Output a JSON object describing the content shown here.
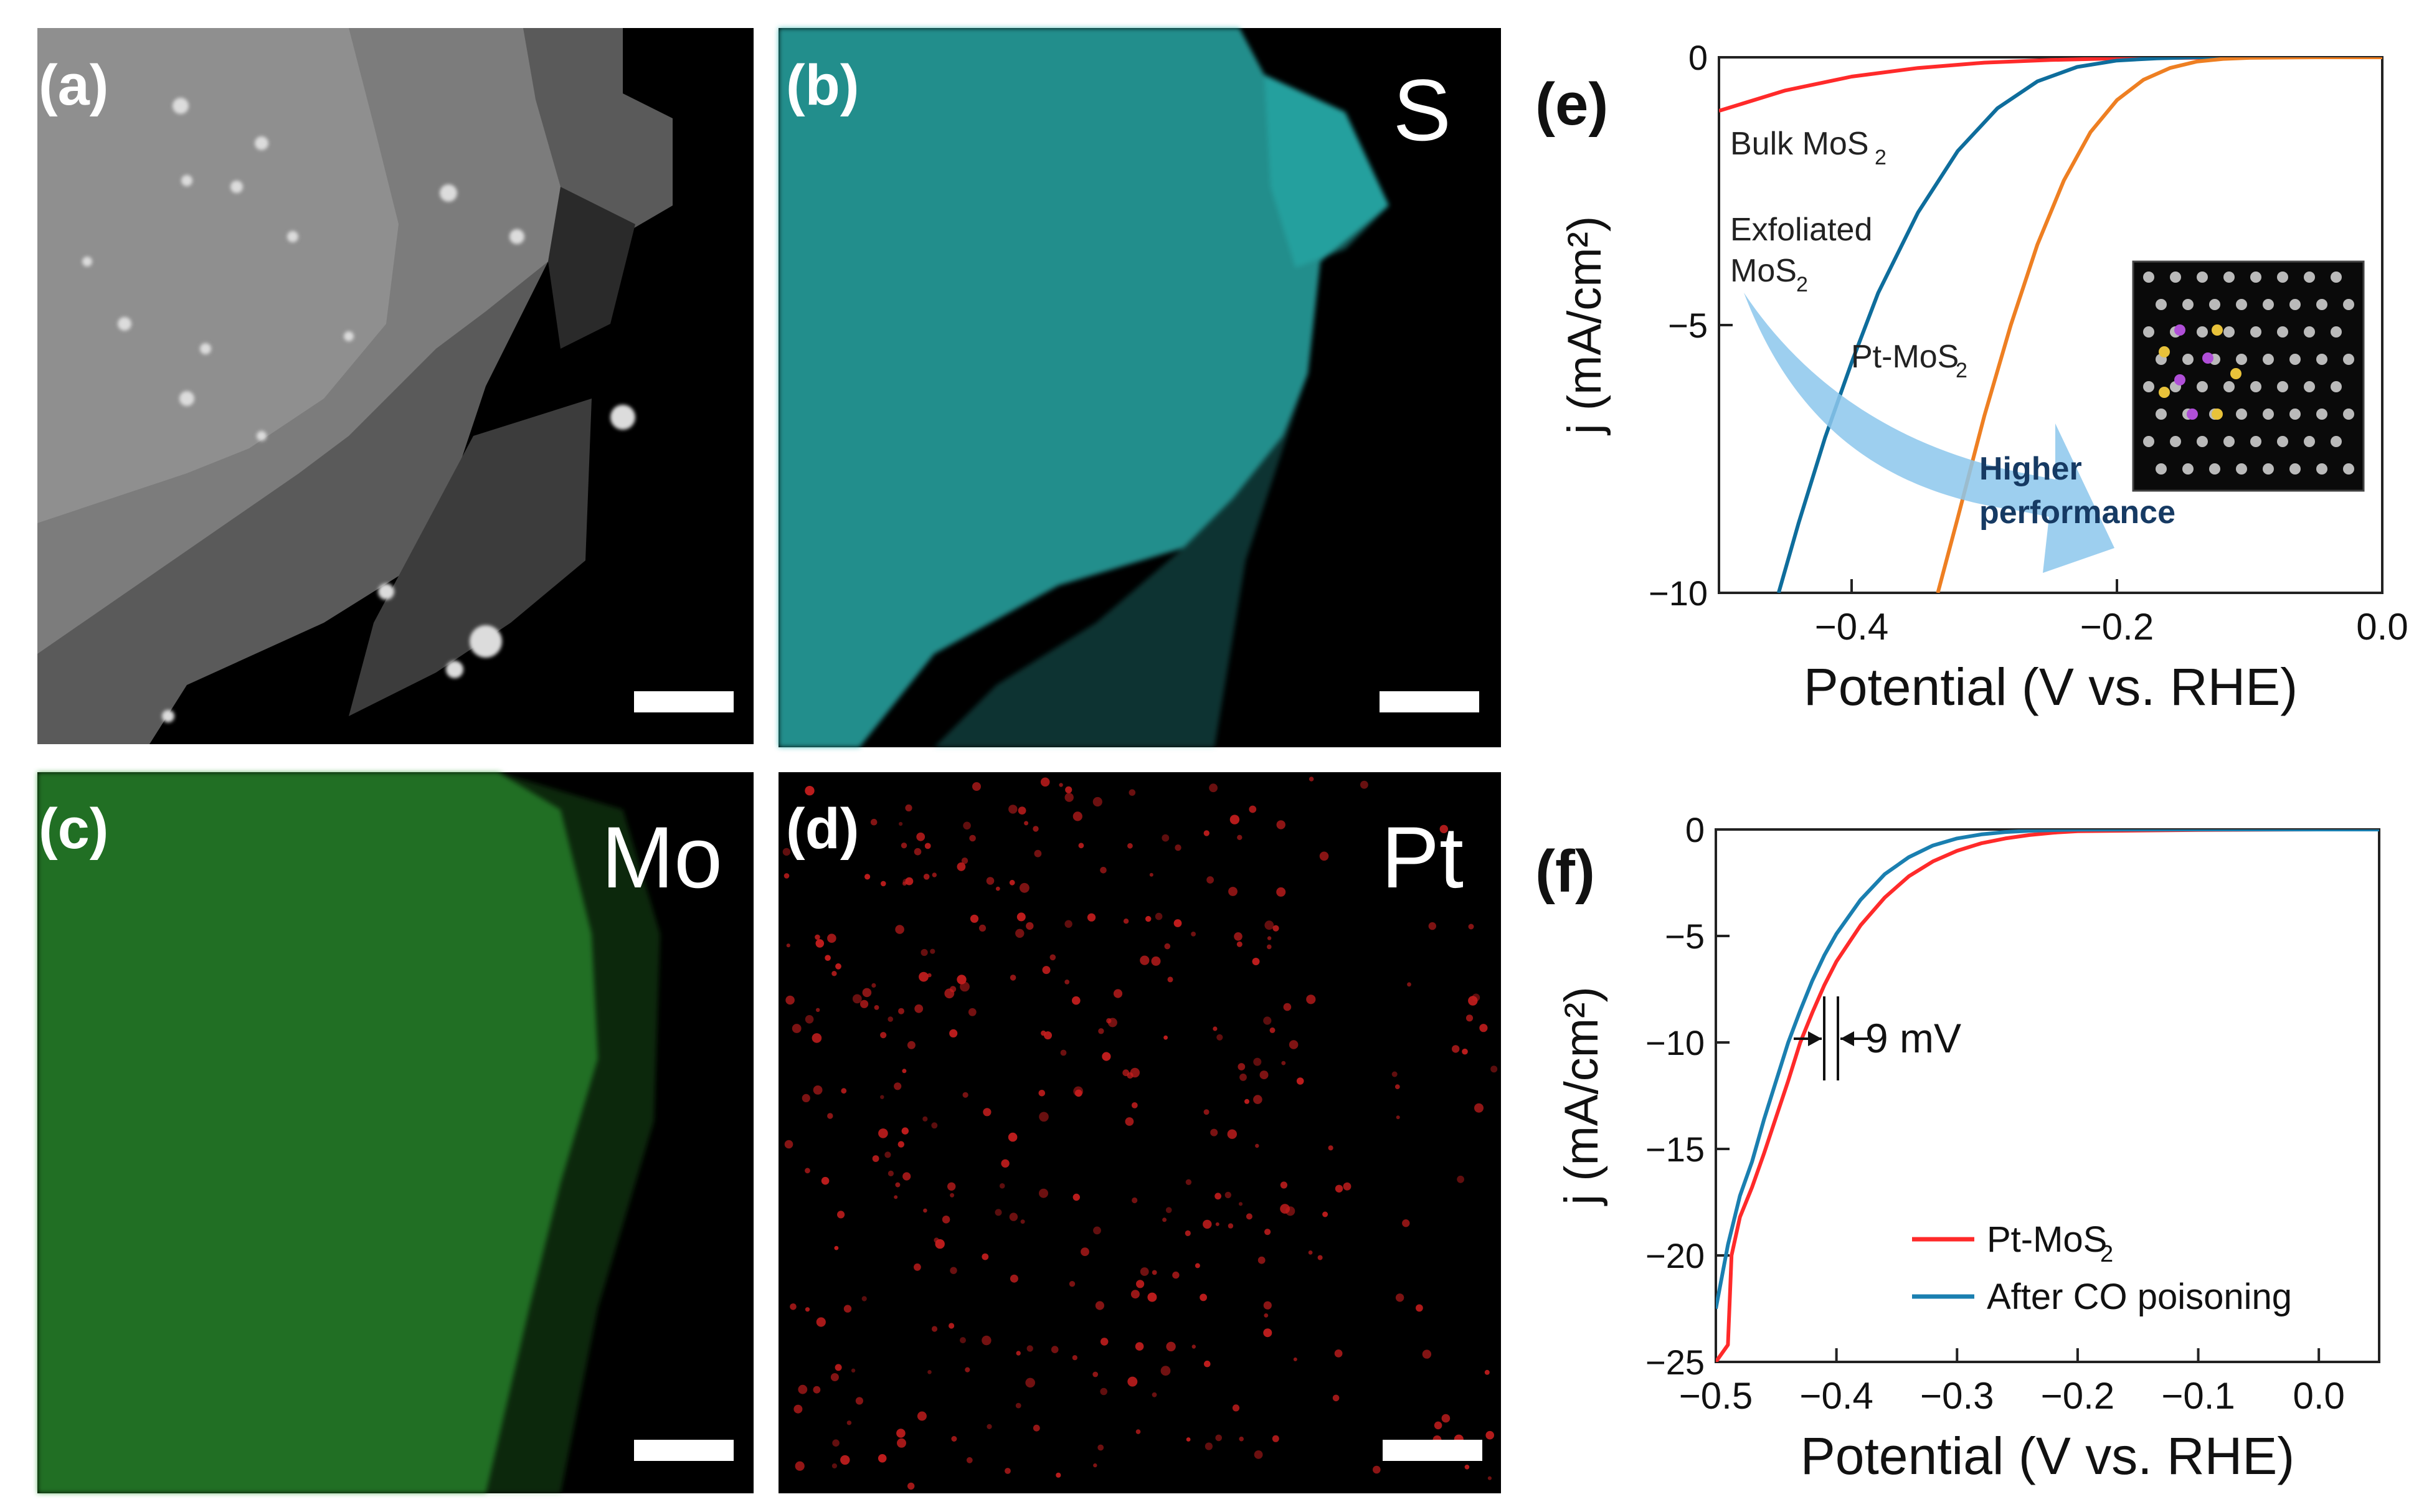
{
  "colors": {
    "panel_bg": "#000000",
    "sulfur": "#2bb6b4",
    "molybdenum": "#2f9e32",
    "platinum": "#c81e1e",
    "bulk": "#ff2a2a",
    "exfoliated": "#0e6d9c",
    "ptmos2": "#ee7f22",
    "after_co": "#1a7fb0",
    "arrow": "#8cc7ec"
  },
  "panels": {
    "a": {
      "label": "(a)"
    },
    "b": {
      "label": "(b)",
      "element": "S"
    },
    "c": {
      "label": "(c)",
      "element": "Mo"
    },
    "d": {
      "label": "(d)",
      "element": "Pt"
    },
    "e": {
      "label": "(e)",
      "annotation_bulk": "Bulk MoS",
      "annotation_exfoliated_1": "Exfoliated",
      "annotation_exfoliated_2": "MoS",
      "annotation_pt": "Pt-MoS",
      "annotation_sub": "2",
      "arrow_text_1": "Higher",
      "arrow_text_2": "performance"
    },
    "f": {
      "label": "(f)",
      "annotation": "9 mV"
    }
  },
  "chart_data": [
    {
      "panel": "e",
      "type": "line",
      "xlabel": "Potential (V vs. RHE)",
      "ylabel": "j (mA/cm²)",
      "xlim": [
        -0.5,
        0.0
      ],
      "ylim": [
        -10,
        0
      ],
      "xticks": [
        -0.4,
        -0.2,
        0.0
      ],
      "xtick_labels": [
        "−0.4",
        "−0.2",
        "0.0"
      ],
      "yticks": [
        0,
        -5,
        -10
      ],
      "ytick_labels": [
        "0",
        "−5",
        "−10"
      ],
      "series": [
        {
          "name": "Bulk MoS2",
          "x": [
            -0.5,
            -0.45,
            -0.4,
            -0.35,
            -0.3,
            -0.25,
            -0.2,
            -0.15,
            -0.1,
            -0.05,
            0.0
          ],
          "y": [
            -1.0,
            -0.62,
            -0.36,
            -0.2,
            -0.1,
            -0.05,
            -0.02,
            -0.01,
            0.0,
            0.0,
            0.0
          ]
        },
        {
          "name": "Exfoliated MoS2",
          "x": [
            -0.455,
            -0.44,
            -0.42,
            -0.4,
            -0.38,
            -0.35,
            -0.32,
            -0.29,
            -0.26,
            -0.23,
            -0.2,
            -0.17,
            -0.14,
            -0.1,
            0.0
          ],
          "y": [
            -10.0,
            -8.7,
            -7.1,
            -5.7,
            -4.4,
            -2.9,
            -1.75,
            -0.95,
            -0.45,
            -0.18,
            -0.06,
            -0.02,
            0.0,
            0.0,
            0.0
          ]
        },
        {
          "name": "Pt-MoS2",
          "x": [
            -0.335,
            -0.32,
            -0.3,
            -0.28,
            -0.26,
            -0.24,
            -0.22,
            -0.2,
            -0.18,
            -0.16,
            -0.14,
            -0.12,
            -0.1,
            -0.05,
            0.0
          ],
          "y": [
            -10.0,
            -8.6,
            -6.7,
            -5.0,
            -3.5,
            -2.3,
            -1.4,
            -0.8,
            -0.42,
            -0.2,
            -0.08,
            -0.03,
            -0.01,
            0.0,
            0.0
          ]
        }
      ]
    },
    {
      "panel": "f",
      "type": "line",
      "xlabel": "Potential (V vs. RHE)",
      "ylabel": "j (mA/cm²)",
      "xlim": [
        -0.5,
        0.05
      ],
      "ylim": [
        -25,
        0
      ],
      "xticks": [
        -0.5,
        -0.4,
        -0.3,
        -0.2,
        -0.1,
        0.0
      ],
      "xtick_labels": [
        "−0.5",
        "−0.4",
        "−0.3",
        "−0.2",
        "−0.1",
        "0.0"
      ],
      "yticks": [
        0,
        -5,
        -10,
        -15,
        -20,
        -25
      ],
      "ytick_labels": [
        "0",
        "−5",
        "−10",
        "−15",
        "−20",
        "−25"
      ],
      "legend": "bottom-right",
      "series": [
        {
          "name": "Pt-MoS2",
          "x": [
            -0.5,
            -0.49,
            -0.487,
            -0.48,
            -0.47,
            -0.46,
            -0.45,
            -0.44,
            -0.43,
            -0.42,
            -0.41,
            -0.4,
            -0.38,
            -0.36,
            -0.34,
            -0.32,
            -0.3,
            -0.28,
            -0.26,
            -0.24,
            -0.22,
            -0.2,
            -0.1,
            0.0,
            0.05
          ],
          "y": [
            -25.0,
            -24.2,
            -20.0,
            -18.2,
            -16.8,
            -15.2,
            -13.5,
            -11.8,
            -10.0,
            -8.6,
            -7.3,
            -6.2,
            -4.5,
            -3.2,
            -2.2,
            -1.5,
            -1.0,
            -0.65,
            -0.42,
            -0.26,
            -0.15,
            -0.08,
            -0.02,
            0.0,
            0.0
          ]
        },
        {
          "name": "After CO poisoning",
          "x": [
            -0.5,
            -0.49,
            -0.48,
            -0.47,
            -0.46,
            -0.45,
            -0.44,
            -0.43,
            -0.42,
            -0.41,
            -0.4,
            -0.38,
            -0.36,
            -0.34,
            -0.32,
            -0.3,
            -0.28,
            -0.26,
            -0.24,
            -0.22,
            -0.2,
            -0.1,
            0.0,
            0.05
          ],
          "y": [
            -22.5,
            -19.5,
            -17.2,
            -15.6,
            -13.6,
            -11.8,
            -10.0,
            -8.5,
            -7.1,
            -5.9,
            -4.9,
            -3.3,
            -2.1,
            -1.3,
            -0.75,
            -0.42,
            -0.23,
            -0.12,
            -0.06,
            -0.03,
            -0.01,
            0.0,
            0.0,
            0.0
          ]
        }
      ]
    }
  ]
}
